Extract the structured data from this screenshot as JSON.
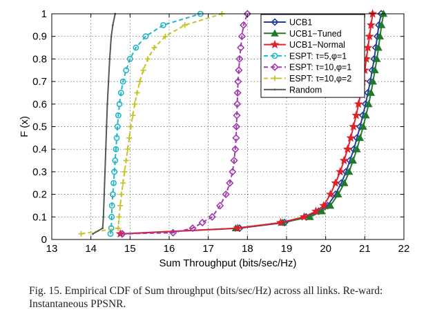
{
  "chart_data": {
    "type": "line",
    "title": "",
    "xlabel": "Sum Throughput (bits/sec/Hz)",
    "ylabel": "F (x)",
    "xlim": [
      13,
      22
    ],
    "ylim": [
      0,
      1
    ],
    "xticks": [
      13,
      14,
      15,
      16,
      17,
      18,
      19,
      20,
      21,
      22
    ],
    "yticks": [
      0,
      0.1,
      0.2,
      0.3,
      0.4,
      0.5,
      0.6,
      0.7,
      0.8,
      0.9,
      1
    ],
    "ytick_labels": [
      "0",
      "0.1",
      "0.2",
      "0.3",
      "0.4",
      "0.5",
      "0.6",
      "0.7",
      "0.8",
      "0.9",
      "1"
    ],
    "grid": true,
    "legend_position": "top-right",
    "series": [
      {
        "name": "UCB1",
        "color": "#1f3f9a",
        "marker": "diamond",
        "dashed": false,
        "points": [
          [
            14.8,
            0.025
          ],
          [
            17.8,
            0.05
          ],
          [
            18.95,
            0.075
          ],
          [
            19.5,
            0.1
          ],
          [
            19.82,
            0.125
          ],
          [
            20.05,
            0.15
          ],
          [
            20.25,
            0.2
          ],
          [
            20.4,
            0.25
          ],
          [
            20.52,
            0.3
          ],
          [
            20.62,
            0.35
          ],
          [
            20.72,
            0.4
          ],
          [
            20.8,
            0.45
          ],
          [
            20.88,
            0.5
          ],
          [
            20.95,
            0.55
          ],
          [
            21.02,
            0.6
          ],
          [
            21.08,
            0.65
          ],
          [
            21.14,
            0.7
          ],
          [
            21.19,
            0.75
          ],
          [
            21.24,
            0.8
          ],
          [
            21.28,
            0.85
          ],
          [
            21.32,
            0.9
          ],
          [
            21.36,
            0.95
          ],
          [
            21.42,
            1.0
          ]
        ]
      },
      {
        "name": "UCB1−Tuned",
        "color": "#1e7a2a",
        "marker": "triangle",
        "dashed": false,
        "points": [
          [
            17.7,
            0.05
          ],
          [
            18.9,
            0.075
          ],
          [
            19.6,
            0.1
          ],
          [
            19.9,
            0.125
          ],
          [
            20.12,
            0.15
          ],
          [
            20.32,
            0.2
          ],
          [
            20.48,
            0.25
          ],
          [
            20.6,
            0.3
          ],
          [
            20.7,
            0.35
          ],
          [
            20.8,
            0.4
          ],
          [
            20.88,
            0.45
          ],
          [
            20.96,
            0.5
          ],
          [
            21.03,
            0.55
          ],
          [
            21.1,
            0.6
          ],
          [
            21.16,
            0.65
          ],
          [
            21.21,
            0.7
          ],
          [
            21.26,
            0.75
          ],
          [
            21.31,
            0.8
          ],
          [
            21.35,
            0.85
          ],
          [
            21.39,
            0.9
          ],
          [
            21.43,
            0.95
          ],
          [
            21.48,
            1.0
          ]
        ]
      },
      {
        "name": "UCB1−Normal",
        "color": "#e0202a",
        "marker": "star",
        "dashed": false,
        "points": [
          [
            14.75,
            0.025
          ],
          [
            17.75,
            0.05
          ],
          [
            18.85,
            0.075
          ],
          [
            19.45,
            0.1
          ],
          [
            19.75,
            0.125
          ],
          [
            19.95,
            0.15
          ],
          [
            20.12,
            0.2
          ],
          [
            20.25,
            0.25
          ],
          [
            20.37,
            0.3
          ],
          [
            20.47,
            0.35
          ],
          [
            20.56,
            0.4
          ],
          [
            20.64,
            0.45
          ],
          [
            20.71,
            0.5
          ],
          [
            20.78,
            0.55
          ],
          [
            20.84,
            0.6
          ],
          [
            20.9,
            0.65
          ],
          [
            20.95,
            0.7
          ],
          [
            21.0,
            0.75
          ],
          [
            21.04,
            0.8
          ],
          [
            21.08,
            0.85
          ],
          [
            21.12,
            0.9
          ],
          [
            21.16,
            0.95
          ],
          [
            21.2,
            1.0
          ]
        ]
      },
      {
        "name": "ESPT: τ=5,φ=1",
        "color": "#1fb5c8",
        "marker": "circle",
        "dashed": true,
        "points": [
          [
            14.5,
            0.025
          ],
          [
            14.52,
            0.05
          ],
          [
            14.53,
            0.1
          ],
          [
            14.54,
            0.15
          ],
          [
            14.56,
            0.2
          ],
          [
            14.58,
            0.25
          ],
          [
            14.6,
            0.3
          ],
          [
            14.62,
            0.35
          ],
          [
            14.64,
            0.4
          ],
          [
            14.66,
            0.45
          ],
          [
            14.68,
            0.5
          ],
          [
            14.7,
            0.55
          ],
          [
            14.73,
            0.6
          ],
          [
            14.77,
            0.65
          ],
          [
            14.82,
            0.7
          ],
          [
            14.9,
            0.75
          ],
          [
            15.0,
            0.8
          ],
          [
            15.15,
            0.85
          ],
          [
            15.4,
            0.9
          ],
          [
            15.85,
            0.95
          ],
          [
            16.8,
            1.0
          ]
        ]
      },
      {
        "name": "ESPT: τ=10,φ=1",
        "color": "#a13aad",
        "marker": "diamond",
        "dashed": true,
        "points": [
          [
            14.8,
            0.025
          ],
          [
            16.1,
            0.03
          ],
          [
            16.6,
            0.05
          ],
          [
            16.85,
            0.075
          ],
          [
            17.1,
            0.1
          ],
          [
            17.3,
            0.15
          ],
          [
            17.45,
            0.2
          ],
          [
            17.55,
            0.25
          ],
          [
            17.62,
            0.3
          ],
          [
            17.66,
            0.35
          ],
          [
            17.69,
            0.4
          ],
          [
            17.71,
            0.45
          ],
          [
            17.72,
            0.5
          ],
          [
            17.73,
            0.55
          ],
          [
            17.74,
            0.6
          ],
          [
            17.75,
            0.65
          ],
          [
            17.76,
            0.7
          ],
          [
            17.78,
            0.75
          ],
          [
            17.8,
            0.8
          ],
          [
            17.83,
            0.85
          ],
          [
            17.86,
            0.9
          ],
          [
            17.9,
            0.95
          ],
          [
            18.0,
            1.0
          ]
        ]
      },
      {
        "name": "ESPT: τ=10,φ=2",
        "color": "#c6c32a",
        "marker": "plus",
        "dashed": true,
        "points": [
          [
            13.75,
            0.025
          ],
          [
            14.7,
            0.05
          ],
          [
            14.72,
            0.1
          ],
          [
            14.75,
            0.15
          ],
          [
            14.78,
            0.2
          ],
          [
            14.82,
            0.25
          ],
          [
            14.86,
            0.3
          ],
          [
            14.9,
            0.35
          ],
          [
            14.94,
            0.4
          ],
          [
            14.98,
            0.45
          ],
          [
            15.02,
            0.5
          ],
          [
            15.07,
            0.55
          ],
          [
            15.12,
            0.6
          ],
          [
            15.18,
            0.65
          ],
          [
            15.25,
            0.7
          ],
          [
            15.34,
            0.75
          ],
          [
            15.45,
            0.8
          ],
          [
            15.62,
            0.85
          ],
          [
            15.9,
            0.9
          ],
          [
            16.4,
            0.95
          ],
          [
            17.35,
            1.0
          ]
        ]
      },
      {
        "name": "Random",
        "color": "#555555",
        "marker": "dot",
        "dashed": false,
        "points": [
          [
            14.05,
            0.025
          ],
          [
            14.3,
            0.05
          ],
          [
            14.32,
            0.1
          ],
          [
            14.34,
            0.2
          ],
          [
            14.36,
            0.3
          ],
          [
            14.38,
            0.4
          ],
          [
            14.4,
            0.5
          ],
          [
            14.42,
            0.6
          ],
          [
            14.45,
            0.7
          ],
          [
            14.48,
            0.8
          ],
          [
            14.52,
            0.9
          ],
          [
            14.56,
            0.95
          ],
          [
            14.62,
            1.0
          ]
        ]
      }
    ]
  },
  "caption": "Fig. 15.   Empirical CDF of Sum throughput (bits/sec/Hz) across all links. Re-ward: Instantaneous PPSNR."
}
